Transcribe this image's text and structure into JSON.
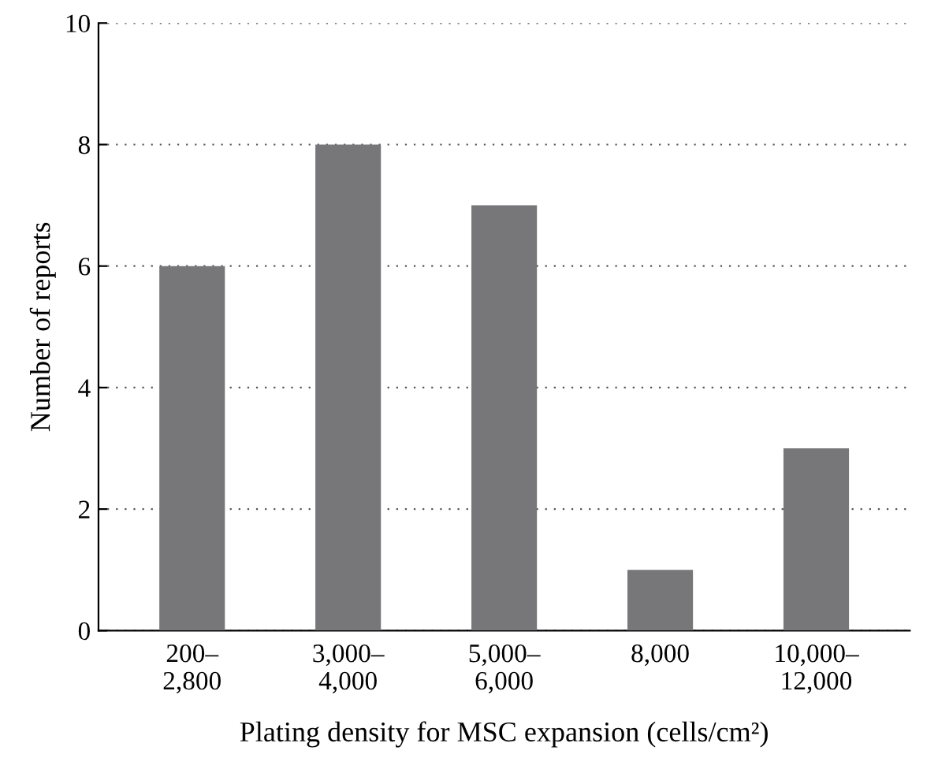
{
  "chart_data": {
    "type": "bar",
    "xlabel": "Plating density for MSC expansion (cells/cm²)",
    "ylabel": "Number of reports",
    "categories": [
      "200–\n2,800",
      "3,000–\n4,000",
      "5,000–\n6,000",
      "8,000",
      "10,000–\n12,000"
    ],
    "values": [
      6,
      8,
      7,
      1,
      3
    ],
    "color": "#77777a",
    "ylim": [
      0,
      10
    ],
    "yticks": [
      0,
      2,
      4,
      6,
      8,
      10
    ],
    "grid": "y"
  }
}
